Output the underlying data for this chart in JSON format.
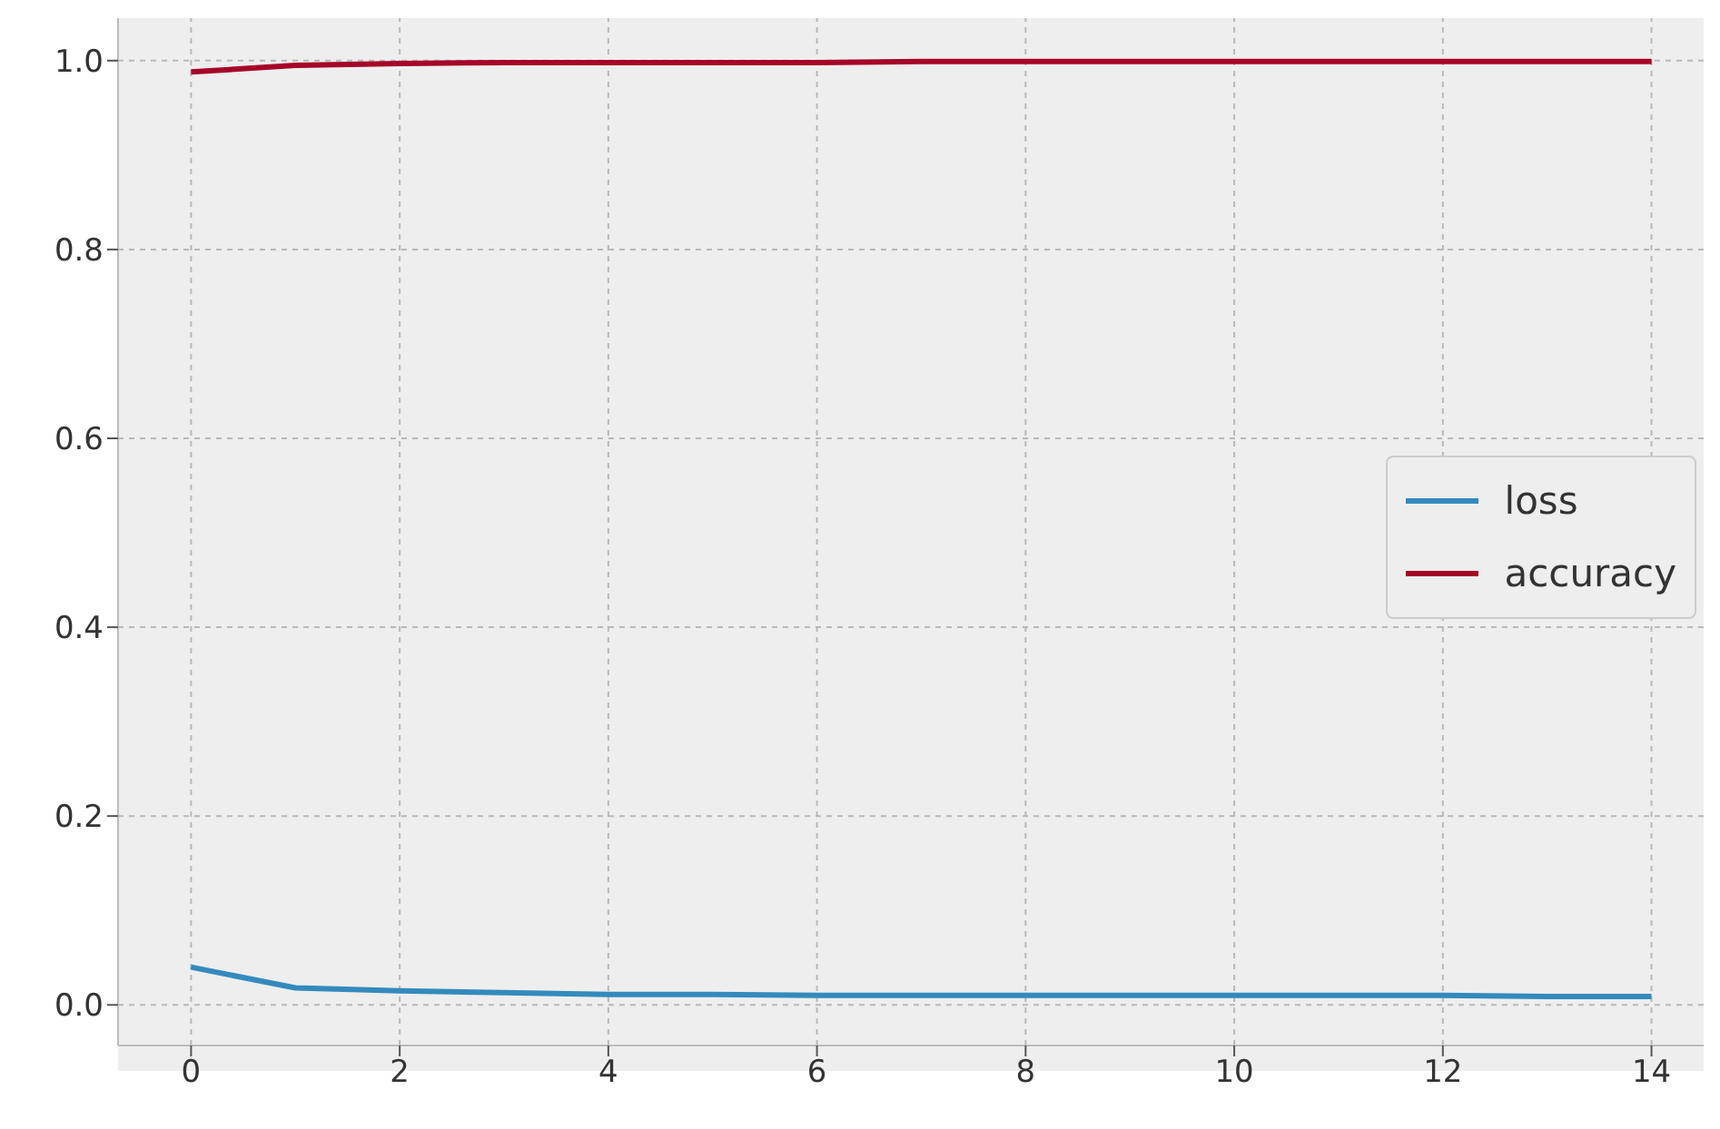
{
  "chart_data": {
    "type": "line",
    "x": [
      0,
      1,
      2,
      3,
      4,
      5,
      6,
      7,
      8,
      9,
      10,
      11,
      12,
      13,
      14
    ],
    "series": [
      {
        "name": "loss",
        "color": "#348abd",
        "values": [
          0.04,
          0.018,
          0.015,
          0.013,
          0.011,
          0.011,
          0.01,
          0.01,
          0.01,
          0.01,
          0.01,
          0.01,
          0.01,
          0.009,
          0.009
        ]
      },
      {
        "name": "accuracy",
        "color": "#a60628",
        "values": [
          0.988,
          0.995,
          0.997,
          0.998,
          0.998,
          0.998,
          0.998,
          0.999,
          0.999,
          0.999,
          0.999,
          0.999,
          0.999,
          0.999,
          0.999
        ]
      }
    ],
    "xlim": [
      -0.7,
      14.5
    ],
    "xticks": [
      0,
      2,
      4,
      6,
      8,
      10,
      12,
      14
    ],
    "ylim": [
      -0.043,
      1.045
    ],
    "yticks": [
      {
        "value": 0,
        "label": "0.0"
      },
      {
        "value": 0.2,
        "label": "0.2"
      },
      {
        "value": 0.4,
        "label": "0.4"
      },
      {
        "value": 0.6,
        "label": "0.6"
      },
      {
        "value": 0.8,
        "label": "0.8"
      },
      {
        "value": 1,
        "label": "1.0"
      }
    ],
    "grid": true,
    "legend": "right",
    "marker": "none",
    "line_style": "solid"
  }
}
